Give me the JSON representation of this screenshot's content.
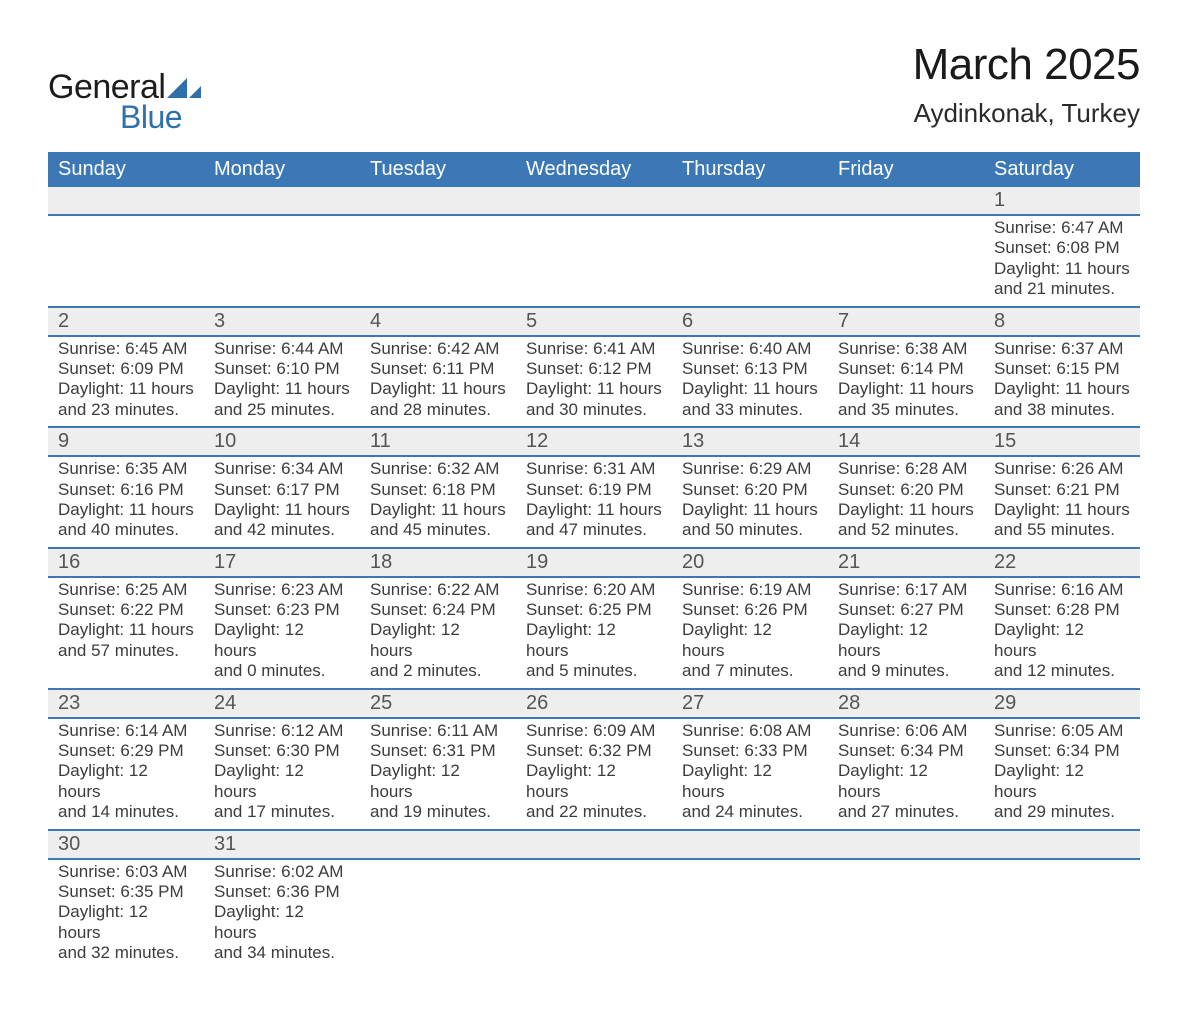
{
  "logo": {
    "text_general": "General",
    "text_blue": "Blue",
    "icon_color": "#2f6fab",
    "text_color_general": "#1c1c1c",
    "text_color_blue": "#2f6fab"
  },
  "title": "March 2025",
  "location": "Aydinkonak, Turkey",
  "colors": {
    "header_bg": "#3b78b5",
    "header_text": "#ffffff",
    "daynum_bg": "#eeeeee",
    "row_border": "#3b78b5",
    "text": "#3c3c3c",
    "page_bg": "#ffffff"
  },
  "typography": {
    "title_fontsize_pt": 33,
    "location_fontsize_pt": 20,
    "header_fontsize_pt": 15,
    "daynum_fontsize_pt": 15,
    "detail_fontsize_pt": 13,
    "font_family": "Arial"
  },
  "calendar": {
    "type": "table",
    "columns": [
      "Sunday",
      "Monday",
      "Tuesday",
      "Wednesday",
      "Thursday",
      "Friday",
      "Saturday"
    ],
    "weeks": [
      {
        "days": [
          {
            "num": "",
            "sunrise": "",
            "sunset": "",
            "daylight1": "",
            "daylight2": ""
          },
          {
            "num": "",
            "sunrise": "",
            "sunset": "",
            "daylight1": "",
            "daylight2": ""
          },
          {
            "num": "",
            "sunrise": "",
            "sunset": "",
            "daylight1": "",
            "daylight2": ""
          },
          {
            "num": "",
            "sunrise": "",
            "sunset": "",
            "daylight1": "",
            "daylight2": ""
          },
          {
            "num": "",
            "sunrise": "",
            "sunset": "",
            "daylight1": "",
            "daylight2": ""
          },
          {
            "num": "",
            "sunrise": "",
            "sunset": "",
            "daylight1": "",
            "daylight2": ""
          },
          {
            "num": "1",
            "sunrise": "Sunrise: 6:47 AM",
            "sunset": "Sunset: 6:08 PM",
            "daylight1": "Daylight: 11 hours",
            "daylight2": "and 21 minutes."
          }
        ]
      },
      {
        "days": [
          {
            "num": "2",
            "sunrise": "Sunrise: 6:45 AM",
            "sunset": "Sunset: 6:09 PM",
            "daylight1": "Daylight: 11 hours",
            "daylight2": "and 23 minutes."
          },
          {
            "num": "3",
            "sunrise": "Sunrise: 6:44 AM",
            "sunset": "Sunset: 6:10 PM",
            "daylight1": "Daylight: 11 hours",
            "daylight2": "and 25 minutes."
          },
          {
            "num": "4",
            "sunrise": "Sunrise: 6:42 AM",
            "sunset": "Sunset: 6:11 PM",
            "daylight1": "Daylight: 11 hours",
            "daylight2": "and 28 minutes."
          },
          {
            "num": "5",
            "sunrise": "Sunrise: 6:41 AM",
            "sunset": "Sunset: 6:12 PM",
            "daylight1": "Daylight: 11 hours",
            "daylight2": "and 30 minutes."
          },
          {
            "num": "6",
            "sunrise": "Sunrise: 6:40 AM",
            "sunset": "Sunset: 6:13 PM",
            "daylight1": "Daylight: 11 hours",
            "daylight2": "and 33 minutes."
          },
          {
            "num": "7",
            "sunrise": "Sunrise: 6:38 AM",
            "sunset": "Sunset: 6:14 PM",
            "daylight1": "Daylight: 11 hours",
            "daylight2": "and 35 minutes."
          },
          {
            "num": "8",
            "sunrise": "Sunrise: 6:37 AM",
            "sunset": "Sunset: 6:15 PM",
            "daylight1": "Daylight: 11 hours",
            "daylight2": "and 38 minutes."
          }
        ]
      },
      {
        "days": [
          {
            "num": "9",
            "sunrise": "Sunrise: 6:35 AM",
            "sunset": "Sunset: 6:16 PM",
            "daylight1": "Daylight: 11 hours",
            "daylight2": "and 40 minutes."
          },
          {
            "num": "10",
            "sunrise": "Sunrise: 6:34 AM",
            "sunset": "Sunset: 6:17 PM",
            "daylight1": "Daylight: 11 hours",
            "daylight2": "and 42 minutes."
          },
          {
            "num": "11",
            "sunrise": "Sunrise: 6:32 AM",
            "sunset": "Sunset: 6:18 PM",
            "daylight1": "Daylight: 11 hours",
            "daylight2": "and 45 minutes."
          },
          {
            "num": "12",
            "sunrise": "Sunrise: 6:31 AM",
            "sunset": "Sunset: 6:19 PM",
            "daylight1": "Daylight: 11 hours",
            "daylight2": "and 47 minutes."
          },
          {
            "num": "13",
            "sunrise": "Sunrise: 6:29 AM",
            "sunset": "Sunset: 6:20 PM",
            "daylight1": "Daylight: 11 hours",
            "daylight2": "and 50 minutes."
          },
          {
            "num": "14",
            "sunrise": "Sunrise: 6:28 AM",
            "sunset": "Sunset: 6:20 PM",
            "daylight1": "Daylight: 11 hours",
            "daylight2": "and 52 minutes."
          },
          {
            "num": "15",
            "sunrise": "Sunrise: 6:26 AM",
            "sunset": "Sunset: 6:21 PM",
            "daylight1": "Daylight: 11 hours",
            "daylight2": "and 55 minutes."
          }
        ]
      },
      {
        "days": [
          {
            "num": "16",
            "sunrise": "Sunrise: 6:25 AM",
            "sunset": "Sunset: 6:22 PM",
            "daylight1": "Daylight: 11 hours",
            "daylight2": "and 57 minutes."
          },
          {
            "num": "17",
            "sunrise": "Sunrise: 6:23 AM",
            "sunset": "Sunset: 6:23 PM",
            "daylight1": "Daylight: 12 hours",
            "daylight2": "and 0 minutes."
          },
          {
            "num": "18",
            "sunrise": "Sunrise: 6:22 AM",
            "sunset": "Sunset: 6:24 PM",
            "daylight1": "Daylight: 12 hours",
            "daylight2": "and 2 minutes."
          },
          {
            "num": "19",
            "sunrise": "Sunrise: 6:20 AM",
            "sunset": "Sunset: 6:25 PM",
            "daylight1": "Daylight: 12 hours",
            "daylight2": "and 5 minutes."
          },
          {
            "num": "20",
            "sunrise": "Sunrise: 6:19 AM",
            "sunset": "Sunset: 6:26 PM",
            "daylight1": "Daylight: 12 hours",
            "daylight2": "and 7 minutes."
          },
          {
            "num": "21",
            "sunrise": "Sunrise: 6:17 AM",
            "sunset": "Sunset: 6:27 PM",
            "daylight1": "Daylight: 12 hours",
            "daylight2": "and 9 minutes."
          },
          {
            "num": "22",
            "sunrise": "Sunrise: 6:16 AM",
            "sunset": "Sunset: 6:28 PM",
            "daylight1": "Daylight: 12 hours",
            "daylight2": "and 12 minutes."
          }
        ]
      },
      {
        "days": [
          {
            "num": "23",
            "sunrise": "Sunrise: 6:14 AM",
            "sunset": "Sunset: 6:29 PM",
            "daylight1": "Daylight: 12 hours",
            "daylight2": "and 14 minutes."
          },
          {
            "num": "24",
            "sunrise": "Sunrise: 6:12 AM",
            "sunset": "Sunset: 6:30 PM",
            "daylight1": "Daylight: 12 hours",
            "daylight2": "and 17 minutes."
          },
          {
            "num": "25",
            "sunrise": "Sunrise: 6:11 AM",
            "sunset": "Sunset: 6:31 PM",
            "daylight1": "Daylight: 12 hours",
            "daylight2": "and 19 minutes."
          },
          {
            "num": "26",
            "sunrise": "Sunrise: 6:09 AM",
            "sunset": "Sunset: 6:32 PM",
            "daylight1": "Daylight: 12 hours",
            "daylight2": "and 22 minutes."
          },
          {
            "num": "27",
            "sunrise": "Sunrise: 6:08 AM",
            "sunset": "Sunset: 6:33 PM",
            "daylight1": "Daylight: 12 hours",
            "daylight2": "and 24 minutes."
          },
          {
            "num": "28",
            "sunrise": "Sunrise: 6:06 AM",
            "sunset": "Sunset: 6:34 PM",
            "daylight1": "Daylight: 12 hours",
            "daylight2": "and 27 minutes."
          },
          {
            "num": "29",
            "sunrise": "Sunrise: 6:05 AM",
            "sunset": "Sunset: 6:34 PM",
            "daylight1": "Daylight: 12 hours",
            "daylight2": "and 29 minutes."
          }
        ]
      },
      {
        "days": [
          {
            "num": "30",
            "sunrise": "Sunrise: 6:03 AM",
            "sunset": "Sunset: 6:35 PM",
            "daylight1": "Daylight: 12 hours",
            "daylight2": "and 32 minutes."
          },
          {
            "num": "31",
            "sunrise": "Sunrise: 6:02 AM",
            "sunset": "Sunset: 6:36 PM",
            "daylight1": "Daylight: 12 hours",
            "daylight2": "and 34 minutes."
          },
          {
            "num": "",
            "sunrise": "",
            "sunset": "",
            "daylight1": "",
            "daylight2": ""
          },
          {
            "num": "",
            "sunrise": "",
            "sunset": "",
            "daylight1": "",
            "daylight2": ""
          },
          {
            "num": "",
            "sunrise": "",
            "sunset": "",
            "daylight1": "",
            "daylight2": ""
          },
          {
            "num": "",
            "sunrise": "",
            "sunset": "",
            "daylight1": "",
            "daylight2": ""
          },
          {
            "num": "",
            "sunrise": "",
            "sunset": "",
            "daylight1": "",
            "daylight2": ""
          }
        ]
      }
    ]
  }
}
